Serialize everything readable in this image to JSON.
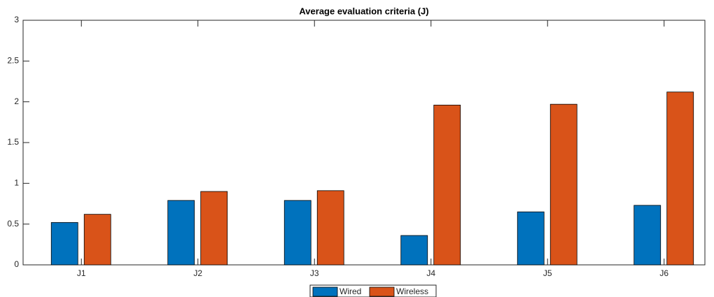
{
  "chart_data": {
    "type": "bar",
    "title": "Average evaluation criteria (J)",
    "categories": [
      "J1",
      "J2",
      "J3",
      "J4",
      "J5",
      "J6"
    ],
    "series": [
      {
        "name": "Wired",
        "color": "#0072bd",
        "values": [
          0.52,
          0.79,
          0.79,
          0.36,
          0.65,
          0.73
        ]
      },
      {
        "name": "Wireless",
        "color": "#d95319",
        "values": [
          0.62,
          0.9,
          0.91,
          1.96,
          1.97,
          2.12
        ]
      }
    ],
    "ylim": [
      0,
      3
    ],
    "yticks": [
      0,
      0.5,
      1,
      1.5,
      2,
      2.5,
      3
    ],
    "grid": false,
    "legend": "bottom"
  }
}
